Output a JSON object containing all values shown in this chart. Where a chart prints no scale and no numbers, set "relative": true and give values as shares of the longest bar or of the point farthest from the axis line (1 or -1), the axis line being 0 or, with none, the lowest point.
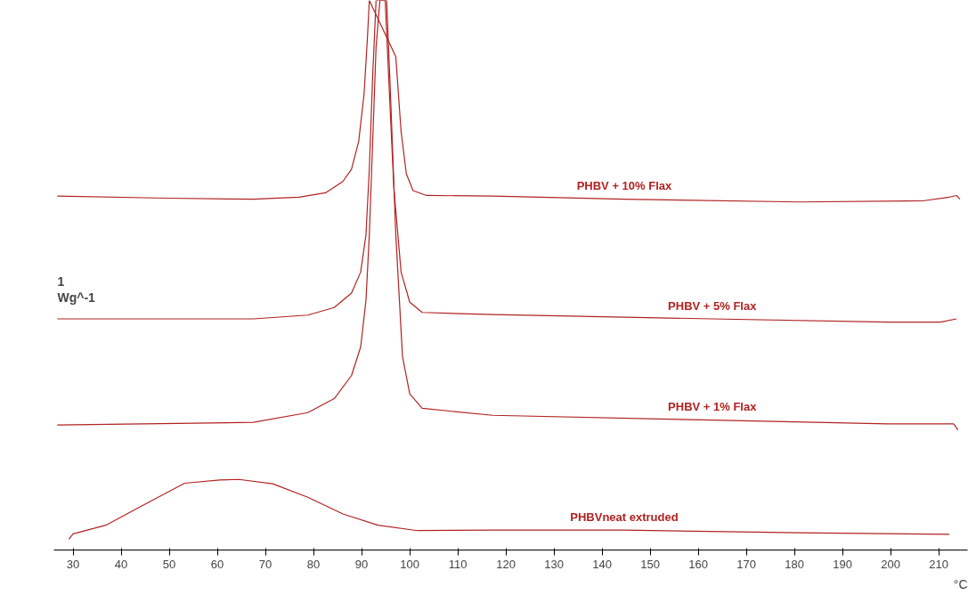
{
  "chart_data": {
    "type": "line",
    "relative": true,
    "xlabel": "°C",
    "annotations": [
      "1",
      "Wg^-1"
    ],
    "xlim": [
      26,
      216
    ],
    "xticks": [
      30,
      40,
      50,
      60,
      70,
      80,
      90,
      100,
      110,
      120,
      130,
      140,
      150,
      160,
      170,
      180,
      190,
      200,
      210
    ],
    "grid": false,
    "marker": "none",
    "line_style": "solid",
    "series": [
      {
        "name": "PHBV + 10% Flax",
        "color": "#b22222",
        "x": [
          26.7,
          49.6,
          67.5,
          77.0,
          82.5,
          86.1,
          87.9,
          89.4,
          90.5,
          91.2,
          91.6,
          97.1,
          98.2,
          99.3,
          100.7,
          103.5,
          117.2,
          144.6,
          181.1,
          206.7,
          212.2,
          213.7,
          214.4
        ],
        "values": [
          0.637,
          0.633,
          0.631,
          0.635,
          0.643,
          0.664,
          0.687,
          0.739,
          0.826,
          0.93,
          1,
          0.896,
          0.757,
          0.678,
          0.647,
          0.638,
          0.637,
          0.631,
          0.626,
          0.628,
          0.635,
          0.638,
          0.631
        ]
      },
      {
        "name": "PHBV + 5% Flax",
        "color": "#b22222",
        "x": [
          26.7,
          67.5,
          78.8,
          84.3,
          87.9,
          89.8,
          90.9,
          91.6,
          92.3,
          93.0,
          94.9,
          95.6,
          96.7,
          98.2,
          100.0,
          102.6,
          117.2,
          162.9,
          199.4,
          210.4,
          213.7
        ],
        "values": [
          0.409,
          0.409,
          0.416,
          0.43,
          0.457,
          0.496,
          0.565,
          0.687,
          0.861,
          1,
          1,
          0.861,
          0.652,
          0.496,
          0.44,
          0.421,
          0.417,
          0.409,
          0.403,
          0.403,
          0.409
        ]
      },
      {
        "name": "PHBV + 1% Flax",
        "color": "#b22222",
        "x": [
          26.7,
          67.5,
          78.8,
          84.3,
          87.9,
          89.8,
          90.9,
          91.6,
          92.3,
          93.0,
          93.8,
          95.2,
          96.0,
          97.1,
          98.5,
          100.0,
          102.6,
          117.2,
          162.9,
          199.4,
          213.1,
          214.0
        ],
        "values": [
          0.212,
          0.217,
          0.235,
          0.261,
          0.304,
          0.357,
          0.443,
          0.565,
          0.739,
          0.913,
          1,
          1,
          0.826,
          0.565,
          0.339,
          0.27,
          0.243,
          0.23,
          0.221,
          0.214,
          0.214,
          0.203
        ]
      },
      {
        "name": "PHBVneat extruded",
        "color": "#b22222",
        "x": [
          29.1,
          30,
          36.8,
          44.1,
          53.2,
          60.5,
          64.5,
          71.5,
          78.8,
          86.1,
          93.4,
          101.6,
          117.2,
          144.6,
          181.1,
          212.2
        ],
        "values": [
          0,
          0.01,
          0.026,
          0.061,
          0.104,
          0.11,
          0.111,
          0.103,
          0.078,
          0.047,
          0.026,
          0.016,
          0.017,
          0.017,
          0.012,
          0.009
        ]
      }
    ]
  }
}
